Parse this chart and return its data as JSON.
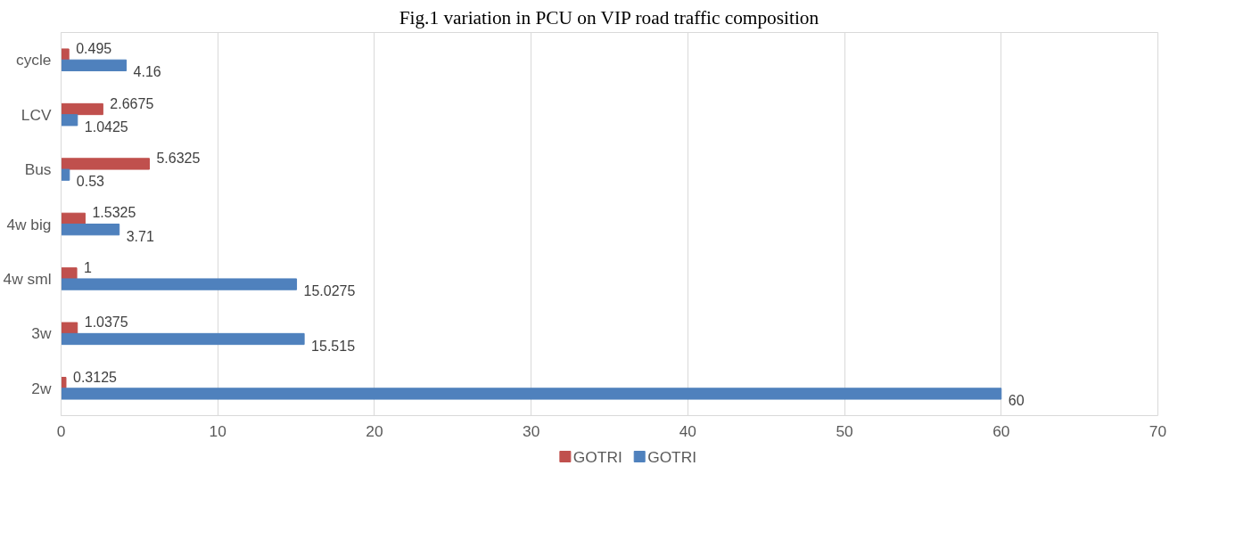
{
  "chart_data": {
    "type": "bar",
    "orientation": "horizontal",
    "title": "Fig.1 variation in PCU on VIP road traffic composition",
    "categories": [
      "cycle",
      "LCV",
      "Bus",
      "4w big",
      "4w sml",
      "3w",
      "2w"
    ],
    "series": [
      {
        "name": "GOTRI",
        "color": "#c0504d",
        "values": [
          0.495,
          2.6675,
          5.6325,
          1.5325,
          1,
          1.0375,
          0.3125
        ]
      },
      {
        "name": "GOTRI",
        "color": "#4f81bd",
        "values": [
          4.16,
          1.0425,
          0.53,
          3.71,
          15.0275,
          15.515,
          60
        ]
      }
    ],
    "xlim": [
      0,
      70
    ],
    "xticks": [
      0,
      10,
      20,
      30,
      40,
      50,
      60,
      70
    ],
    "grid": "x",
    "legend": "bottom",
    "data_labels": true
  }
}
